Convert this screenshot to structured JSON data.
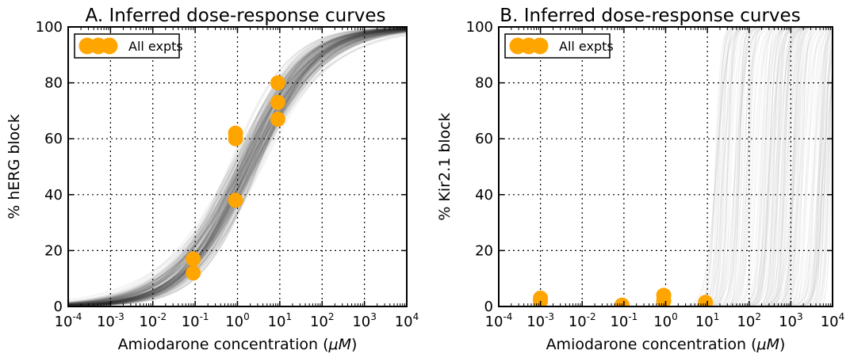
{
  "chart_data": [
    {
      "type": "line",
      "panel": "A",
      "title": "A. Inferred dose-response curves",
      "xlabel_prefix": "Amiodarone concentration (",
      "xlabel_unit": "μM",
      "xlabel_suffix": ")",
      "ylabel": "% hERG block",
      "xscale": "log",
      "xlim": [
        0.0001,
        10000
      ],
      "ylim": [
        0,
        100
      ],
      "xticks": [
        0.0001,
        0.001,
        0.01,
        0.1,
        1,
        10,
        100,
        1000,
        10000
      ],
      "xtick_exponents": [
        "-4",
        "-3",
        "-2",
        "-1",
        "0",
        "1",
        "2",
        "3",
        "4"
      ],
      "xtick_base": "10",
      "yticks": [
        "0",
        "20",
        "40",
        "60",
        "80",
        "100"
      ],
      "grid": true,
      "legend": {
        "label": "All expts",
        "placement": "top-left",
        "color": "#ffa500"
      },
      "curve_color": "#333333",
      "marker_color": "#ffa500",
      "curve_family": {
        "ic50_center": 1.6,
        "ic50_spread_log10": 0.18,
        "hill_center": 0.55,
        "hill_spread": 0.06
      },
      "points": [
        {
          "x": 0.09,
          "y": 17
        },
        {
          "x": 0.09,
          "y": 12
        },
        {
          "x": 0.9,
          "y": 62
        },
        {
          "x": 0.9,
          "y": 60
        },
        {
          "x": 0.9,
          "y": 38
        },
        {
          "x": 9,
          "y": 80
        },
        {
          "x": 9,
          "y": 73
        },
        {
          "x": 9,
          "y": 67
        }
      ]
    },
    {
      "type": "line",
      "panel": "B",
      "title": "B. Inferred dose-response curves",
      "xlabel_prefix": "Amiodarone concentration (",
      "xlabel_unit": "μM",
      "xlabel_suffix": ")",
      "ylabel": "% Kir2.1 block",
      "xscale": "log",
      "xlim": [
        0.0001,
        10000
      ],
      "ylim": [
        0,
        100
      ],
      "xticks": [
        0.0001,
        0.001,
        0.01,
        0.1,
        1,
        10,
        100,
        1000,
        10000
      ],
      "xtick_exponents": [
        "-4",
        "-3",
        "-2",
        "-1",
        "0",
        "1",
        "2",
        "3",
        "4"
      ],
      "xtick_base": "10",
      "yticks": [
        "0",
        "20",
        "40",
        "60",
        "80",
        "100"
      ],
      "grid": true,
      "legend": {
        "label": "All expts",
        "placement": "top-left",
        "color": "#ffa500"
      },
      "curve_color": "#999999",
      "marker_color": "#ffa500",
      "curve_family": {
        "ic50_min": 15,
        "ic50_max": 10000,
        "hill_min": 3,
        "hill_max": 10
      },
      "points": [
        {
          "x": 0.001,
          "y": 3
        },
        {
          "x": 0.001,
          "y": 2
        },
        {
          "x": 0.09,
          "y": 0.5
        },
        {
          "x": 0.9,
          "y": 4
        },
        {
          "x": 0.9,
          "y": 2
        },
        {
          "x": 9,
          "y": 1.5
        }
      ]
    }
  ]
}
